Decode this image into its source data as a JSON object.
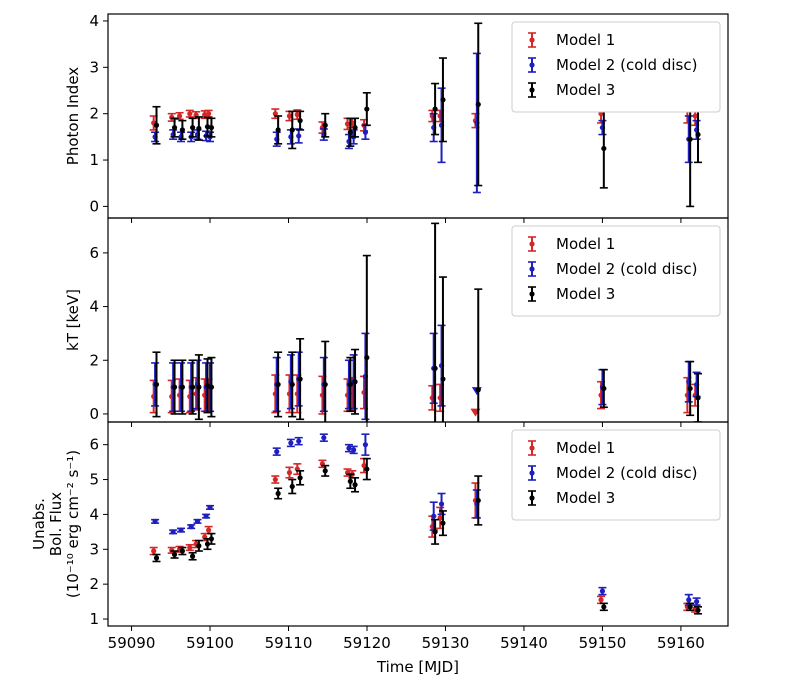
{
  "chart_data": {
    "type": "scatter",
    "shared_x": true,
    "xlabel": "Time [MJD]",
    "xlim": [
      59087,
      59166
    ],
    "xticks": [
      59090,
      59100,
      59110,
      59120,
      59130,
      59140,
      59150,
      59160
    ],
    "xtick_labels": [
      "59090",
      "59100",
      "59110",
      "59120",
      "59130",
      "59140",
      "59150",
      "59160"
    ],
    "series_colors": {
      "Model 1": "#d62728",
      "Model 2 (cold disc)": "#1f1fbf",
      "Model 3": "#000000"
    },
    "panels": [
      {
        "ylabel": [
          "Photon Index"
        ],
        "ylim": [
          -0.25,
          4.15
        ],
        "yticks": [
          0,
          1,
          2,
          3,
          4
        ],
        "ytick_labels": [
          "0",
          "1",
          "2",
          "3",
          "4"
        ],
        "legend": "top-right",
        "series": [
          {
            "name": "Model 1",
            "x": [
              59093,
              59095.3,
              59096.3,
              59097.6,
              59098.4,
              59099.5,
              59100,
              59108.5,
              59110.3,
              59111.3,
              59114.5,
              59117.7,
              59118.3,
              59119.8,
              59128.5,
              59129.5,
              59134,
              59150,
              59161,
              59162
            ],
            "y": [
              1.8,
              1.92,
              1.95,
              2.0,
              1.97,
              1.98,
              2.0,
              2.0,
              1.95,
              1.98,
              1.7,
              1.78,
              1.8,
              1.75,
              1.95,
              1.95,
              1.85,
              2.0,
              2.25,
              1.95
            ],
            "err": [
              0.15,
              0.08,
              0.07,
              0.07,
              0.07,
              0.08,
              0.07,
              0.1,
              0.1,
              0.1,
              0.12,
              0.12,
              0.1,
              0.12,
              0.12,
              0.12,
              0.15,
              0.2,
              0.45,
              0.2
            ]
          },
          {
            "name": "Model 2 (cold disc)",
            "x": [
              59093,
              59095.3,
              59096.3,
              59097.6,
              59098.4,
              59099.5,
              59100,
              59108.5,
              59110.3,
              59111.3,
              59114.5,
              59117.7,
              59118.3,
              59119.8,
              59128.5,
              59129.5,
              59134,
              59150,
              59161,
              59162
            ],
            "y": [
              1.5,
              1.55,
              1.5,
              1.5,
              1.55,
              1.52,
              1.5,
              1.45,
              1.5,
              1.52,
              1.55,
              1.4,
              1.5,
              1.6,
              1.7,
              1.75,
              1.8,
              1.7,
              1.45,
              1.65
            ],
            "err": [
              0.1,
              0.1,
              0.1,
              0.1,
              0.1,
              0.1,
              0.1,
              0.15,
              0.15,
              0.15,
              0.12,
              0.15,
              0.15,
              0.15,
              0.3,
              0.8,
              1.5,
              0.15,
              0.5,
              0.2
            ]
          },
          {
            "name": "Model 3",
            "x": [
              59093,
              59095.3,
              59096.3,
              59097.6,
              59098.4,
              59099.5,
              59100,
              59108.5,
              59110.3,
              59111.3,
              59114.5,
              59117.7,
              59118.3,
              59119.8,
              59128.5,
              59129.5,
              59134,
              59150,
              59161,
              59162
            ],
            "y": [
              1.75,
              1.7,
              1.65,
              1.7,
              1.68,
              1.72,
              1.7,
              1.65,
              1.65,
              1.85,
              1.75,
              1.6,
              1.7,
              2.1,
              2.1,
              2.3,
              2.2,
              1.25,
              1.45,
              1.55
            ],
            "err": [
              0.4,
              0.2,
              0.2,
              0.2,
              0.25,
              0.2,
              0.2,
              0.3,
              0.4,
              0.2,
              0.25,
              0.3,
              0.2,
              0.35,
              0.55,
              0.9,
              1.75,
              0.85,
              1.45,
              0.6
            ]
          }
        ]
      },
      {
        "ylabel": [
          "kT [keV]"
        ],
        "ylim": [
          -0.3,
          7.3
        ],
        "yticks": [
          0,
          2,
          4,
          6
        ],
        "ytick_labels": [
          "0",
          "2",
          "4",
          "6"
        ],
        "legend": "top-right",
        "series": [
          {
            "name": "Model 1",
            "x": [
              59093,
              59095.3,
              59096.3,
              59097.6,
              59098.4,
              59099.5,
              59100,
              59108.5,
              59110.3,
              59111.3,
              59114.5,
              59117.7,
              59118.3,
              59119.8,
              59128.5,
              59129.5,
              59134,
              59150,
              59161,
              59162
            ],
            "y": [
              0.65,
              0.65,
              0.7,
              0.65,
              0.75,
              0.7,
              0.7,
              0.75,
              0.75,
              0.75,
              0.7,
              0.7,
              0.75,
              0.8,
              0.6,
              0.6,
              0.05,
              0.7,
              0.7,
              0.7
            ],
            "err": [
              0.6,
              0.6,
              0.6,
              0.6,
              0.6,
              0.6,
              0.6,
              0.7,
              0.7,
              0.7,
              0.7,
              0.6,
              0.6,
              0.6,
              0.45,
              0.5,
              0,
              0.5,
              0.65,
              0.4
            ]
          },
          {
            "name": "Model 2 (cold disc)",
            "x": [
              59093,
              59095.3,
              59096.3,
              59097.6,
              59098.4,
              59099.5,
              59100,
              59108.5,
              59110.3,
              59111.3,
              59114.5,
              59117.7,
              59118.3,
              59119.8,
              59128.5,
              59129.5,
              59134,
              59150,
              59161,
              59162
            ],
            "y": [
              1.1,
              1.0,
              1.0,
              1.0,
              1.1,
              1.0,
              1.0,
              1.1,
              1.2,
              1.3,
              1.1,
              1.1,
              1.2,
              1.4,
              1.7,
              1.8,
              0.85,
              1.0,
              1.2,
              1.1
            ],
            "err": [
              0.8,
              0.9,
              0.9,
              0.9,
              0.9,
              0.9,
              0.9,
              1.0,
              1.0,
              1.0,
              1.0,
              0.9,
              1.0,
              1.6,
              1.3,
              1.5,
              0,
              0.65,
              0.75,
              0.45
            ]
          },
          {
            "name": "Model 3",
            "x": [
              59093,
              59095.3,
              59096.3,
              59097.6,
              59098.4,
              59099.5,
              59100,
              59108.5,
              59110.3,
              59111.3,
              59114.5,
              59117.7,
              59118.3,
              59119.8,
              59128.5,
              59129.5,
              59134,
              59150,
              59161,
              59162
            ],
            "y": [
              1.1,
              1.0,
              1.0,
              1.0,
              1.0,
              1.05,
              1.0,
              1.1,
              1.1,
              1.3,
              1.1,
              1.1,
              1.2,
              2.1,
              1.7,
              1.3,
              0.9,
              0.95,
              0.95,
              0.6
            ],
            "err": [
              1.2,
              1.0,
              1.0,
              1.0,
              1.2,
              1.0,
              1.1,
              1.2,
              1.2,
              1.5,
              1.6,
              1.0,
              1.2,
              3.8,
              5.4,
              3.8,
              3.75,
              0.7,
              1.0,
              0.9
            ]
          }
        ]
      },
      {
        "ylabel": [
          "Unabs.",
          "Bol. Flux",
          "(10⁻¹⁰ erg cm⁻² s⁻¹)"
        ],
        "ylim": [
          0.8,
          6.65
        ],
        "yticks": [
          1,
          2,
          3,
          4,
          5,
          6
        ],
        "ytick_labels": [
          "1",
          "2",
          "3",
          "4",
          "5",
          "6"
        ],
        "legend": "top-right",
        "series": [
          {
            "name": "Model 1",
            "x": [
              59093,
              59095.3,
              59096.3,
              59097.6,
              59098.4,
              59099.5,
              59100,
              59108.5,
              59110.3,
              59111.3,
              59114.5,
              59117.7,
              59118.3,
              59119.8,
              59128.5,
              59129.5,
              59134,
              59150,
              59161,
              59162
            ],
            "y": [
              2.95,
              2.97,
              3.0,
              3.05,
              3.15,
              3.35,
              3.55,
              5.0,
              5.2,
              5.3,
              5.45,
              5.2,
              5.15,
              5.4,
              3.65,
              3.9,
              4.4,
              1.55,
              1.35,
              1.3
            ],
            "err": [
              0.1,
              0.08,
              0.08,
              0.08,
              0.1,
              0.1,
              0.1,
              0.1,
              0.15,
              0.15,
              0.1,
              0.1,
              0.1,
              0.2,
              0.3,
              0.3,
              0.5,
              0.1,
              0.1,
              0.1
            ]
          },
          {
            "name": "Model 2 (cold disc)",
            "x": [
              59093,
              59095.3,
              59096.3,
              59097.6,
              59098.4,
              59099.5,
              59100,
              59108.5,
              59110.3,
              59111.3,
              59114.5,
              59117.7,
              59118.3,
              59119.8,
              59128.5,
              59129.5,
              59134,
              59150,
              59161,
              59162
            ],
            "y": [
              3.8,
              3.5,
              3.55,
              3.65,
              3.8,
              3.95,
              4.2,
              5.8,
              6.05,
              6.1,
              6.2,
              5.9,
              5.85,
              6.0,
              3.95,
              4.3,
              4.3,
              1.8,
              1.55,
              1.5
            ],
            "err": [
              0.05,
              0.05,
              0.05,
              0.05,
              0.05,
              0.05,
              0.05,
              0.1,
              0.1,
              0.1,
              0.1,
              0.1,
              0.1,
              0.3,
              0.4,
              0.3,
              0.4,
              0.1,
              0.15,
              0.1
            ]
          },
          {
            "name": "Model 3",
            "x": [
              59093,
              59095.3,
              59096.3,
              59097.6,
              59098.4,
              59099.5,
              59100,
              59108.5,
              59110.3,
              59111.3,
              59114.5,
              59117.7,
              59118.3,
              59119.8,
              59128.5,
              59129.5,
              59134,
              59150,
              59161,
              59162
            ],
            "y": [
              2.75,
              2.85,
              2.95,
              2.8,
              3.1,
              3.15,
              3.3,
              4.6,
              4.8,
              5.05,
              5.25,
              4.95,
              4.85,
              5.3,
              3.5,
              3.75,
              4.4,
              1.35,
              1.35,
              1.25
            ],
            "err": [
              0.1,
              0.1,
              0.1,
              0.1,
              0.15,
              0.15,
              0.15,
              0.15,
              0.2,
              0.2,
              0.15,
              0.2,
              0.2,
              0.3,
              0.35,
              0.35,
              0.7,
              0.1,
              0.1,
              0.1
            ]
          }
        ]
      }
    ]
  }
}
